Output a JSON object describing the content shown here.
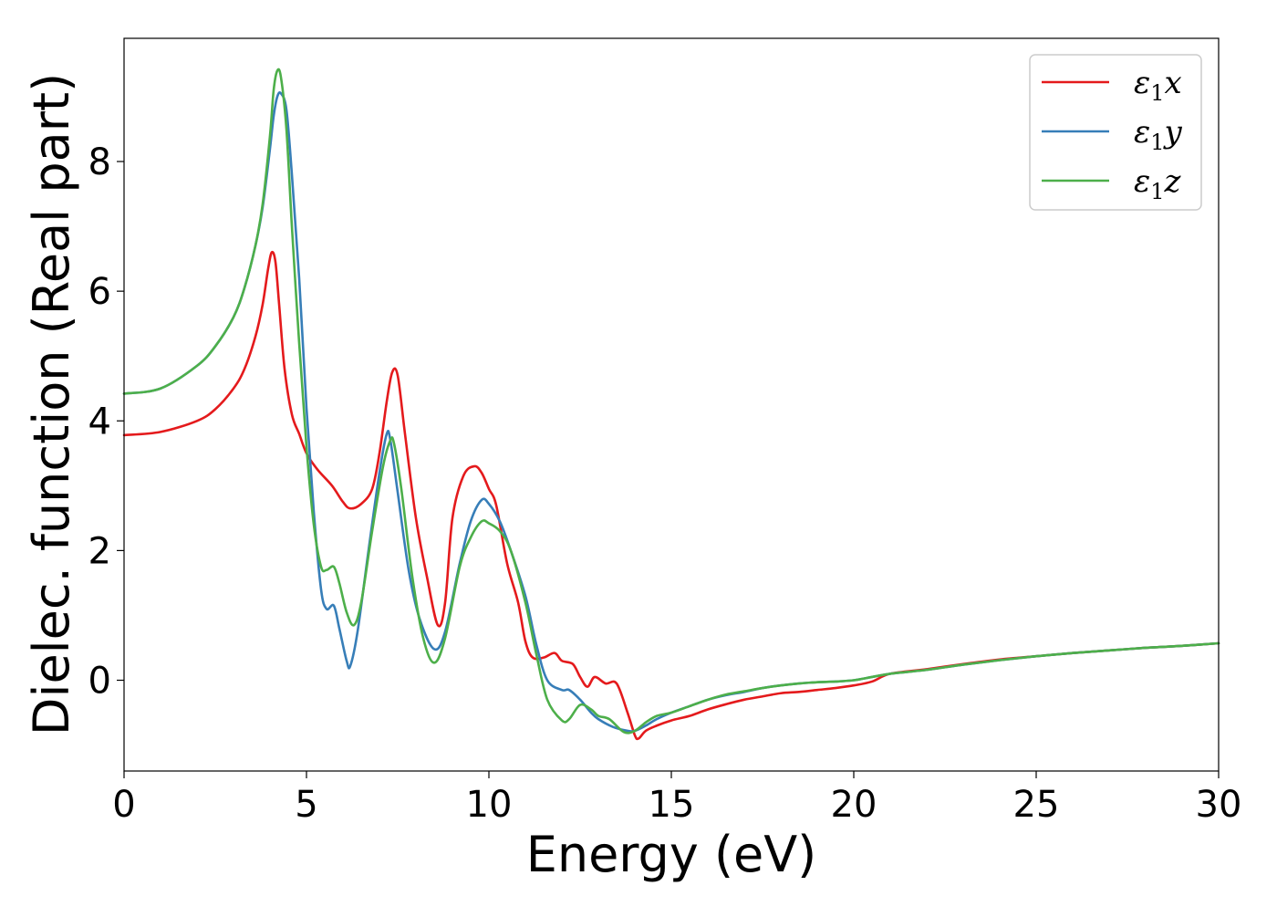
{
  "chart_data": {
    "type": "line",
    "xlabel": "Energy (eV)",
    "ylabel": "Dielec. function (Real part)",
    "xlim": [
      0,
      30
    ],
    "ylim": [
      -1.4,
      9.9
    ],
    "xticks": [
      0,
      5,
      10,
      15,
      20,
      25,
      30
    ],
    "yticks": [
      0,
      2,
      4,
      6,
      8
    ],
    "grid": false,
    "legend_position": "top-right",
    "series": [
      {
        "name": "ε1x",
        "label_base": "ε",
        "label_sub": "1",
        "label_var": "x",
        "color": "#e41a1c",
        "x": [
          0,
          1,
          2,
          2.5,
          3,
          3.3,
          3.6,
          3.8,
          3.95,
          4.05,
          4.15,
          4.25,
          4.4,
          4.6,
          4.8,
          5.0,
          5.3,
          5.7,
          6.0,
          6.2,
          6.5,
          6.8,
          7.0,
          7.2,
          7.35,
          7.5,
          7.7,
          8.0,
          8.3,
          8.6,
          8.8,
          9.0,
          9.3,
          9.6,
          9.8,
          10.0,
          10.2,
          10.5,
          10.8,
          11.0,
          11.2,
          11.5,
          11.8,
          12.0,
          12.3,
          12.5,
          12.7,
          12.9,
          13.2,
          13.5,
          13.8,
          14.0,
          14.1,
          14.3,
          14.6,
          15.0,
          15.5,
          16.0,
          16.5,
          17.0,
          17.5,
          18.0,
          18.5,
          19.0,
          19.5,
          20.0,
          20.5,
          21.0,
          22.0,
          23.0,
          24.0,
          25.0,
          26.0,
          27.0,
          28.0,
          29.0,
          30.0
        ],
        "y": [
          3.78,
          3.83,
          4.0,
          4.18,
          4.5,
          4.8,
          5.3,
          5.8,
          6.35,
          6.6,
          6.45,
          5.8,
          4.8,
          4.1,
          3.8,
          3.5,
          3.25,
          3.0,
          2.75,
          2.65,
          2.72,
          2.95,
          3.5,
          4.3,
          4.75,
          4.7,
          3.8,
          2.5,
          1.6,
          0.85,
          1.2,
          2.5,
          3.15,
          3.3,
          3.2,
          2.95,
          2.7,
          1.8,
          1.2,
          0.6,
          0.35,
          0.35,
          0.42,
          0.3,
          0.25,
          0.05,
          -0.1,
          0.05,
          -0.05,
          -0.05,
          -0.5,
          -0.85,
          -0.9,
          -0.78,
          -0.7,
          -0.62,
          -0.55,
          -0.45,
          -0.37,
          -0.3,
          -0.25,
          -0.2,
          -0.18,
          -0.15,
          -0.12,
          -0.08,
          -0.02,
          0.1,
          0.17,
          0.25,
          0.32,
          0.37,
          0.42,
          0.46,
          0.5,
          0.53,
          0.57
        ]
      },
      {
        "name": "ε1y",
        "label_base": "ε",
        "label_sub": "1",
        "label_var": "y",
        "color": "#377eb8",
        "x": [
          0,
          1,
          2,
          2.5,
          3,
          3.3,
          3.6,
          3.8,
          4.0,
          4.1,
          4.2,
          4.3,
          4.45,
          4.6,
          4.8,
          5.0,
          5.2,
          5.4,
          5.55,
          5.75,
          5.9,
          6.1,
          6.2,
          6.4,
          6.7,
          7.0,
          7.2,
          7.3,
          7.5,
          7.8,
          8.1,
          8.5,
          8.8,
          9.2,
          9.5,
          9.8,
          10.0,
          10.3,
          10.6,
          11.0,
          11.3,
          11.6,
          12.0,
          12.2,
          12.5,
          12.8,
          13.0,
          13.4,
          13.8,
          14.0,
          14.3,
          14.6,
          15.0,
          15.5,
          16.0,
          16.5,
          17.0,
          17.5,
          18.0,
          18.5,
          19.0,
          19.5,
          20.0,
          20.5,
          21.0,
          22.0,
          23.0,
          24.0,
          25.0,
          26.0,
          27.0,
          28.0,
          29.0,
          30.0
        ],
        "y": [
          4.42,
          4.5,
          4.85,
          5.15,
          5.6,
          6.05,
          6.7,
          7.3,
          8.2,
          8.7,
          9.0,
          9.05,
          8.8,
          7.8,
          6.2,
          4.2,
          2.6,
          1.4,
          1.1,
          1.15,
          0.8,
          0.3,
          0.22,
          0.75,
          2.0,
          3.2,
          3.8,
          3.7,
          2.9,
          1.7,
          0.95,
          0.48,
          0.75,
          1.8,
          2.45,
          2.78,
          2.72,
          2.45,
          2.0,
          1.3,
          0.55,
          0.0,
          -0.15,
          -0.15,
          -0.3,
          -0.5,
          -0.6,
          -0.72,
          -0.78,
          -0.78,
          -0.7,
          -0.6,
          -0.5,
          -0.4,
          -0.3,
          -0.23,
          -0.18,
          -0.12,
          -0.08,
          -0.05,
          -0.03,
          -0.02,
          0.0,
          0.05,
          0.1,
          0.16,
          0.24,
          0.31,
          0.37,
          0.42,
          0.46,
          0.5,
          0.53,
          0.57
        ]
      },
      {
        "name": "ε1z",
        "label_base": "ε",
        "label_sub": "1",
        "label_var": "z",
        "color": "#4daf4a",
        "x": [
          0,
          1,
          2,
          2.5,
          3,
          3.3,
          3.6,
          3.8,
          4.0,
          4.1,
          4.2,
          4.3,
          4.45,
          4.6,
          4.8,
          5.0,
          5.2,
          5.4,
          5.55,
          5.75,
          5.9,
          6.1,
          6.3,
          6.5,
          6.8,
          7.1,
          7.3,
          7.4,
          7.6,
          7.9,
          8.2,
          8.5,
          8.8,
          9.2,
          9.5,
          9.8,
          10.0,
          10.3,
          10.6,
          11.0,
          11.3,
          11.6,
          12.0,
          12.2,
          12.5,
          12.8,
          13.0,
          13.3,
          13.7,
          14.0,
          14.3,
          14.6,
          15.0,
          15.5,
          16.0,
          16.5,
          17.0,
          17.5,
          18.0,
          18.5,
          19.0,
          19.5,
          20.0,
          20.5,
          21.0,
          22.0,
          23.0,
          24.0,
          25.0,
          26.0,
          27.0,
          28.0,
          29.0,
          30.0
        ],
        "y": [
          4.42,
          4.5,
          4.85,
          5.15,
          5.6,
          6.05,
          6.7,
          7.35,
          8.4,
          9.1,
          9.4,
          9.3,
          8.5,
          7.0,
          5.2,
          3.6,
          2.4,
          1.75,
          1.7,
          1.75,
          1.5,
          1.05,
          0.85,
          1.2,
          2.3,
          3.3,
          3.7,
          3.65,
          2.95,
          1.6,
          0.65,
          0.27,
          0.65,
          1.75,
          2.2,
          2.45,
          2.42,
          2.3,
          2.0,
          1.2,
          0.4,
          -0.3,
          -0.62,
          -0.6,
          -0.38,
          -0.45,
          -0.55,
          -0.6,
          -0.8,
          -0.78,
          -0.65,
          -0.55,
          -0.5,
          -0.4,
          -0.3,
          -0.22,
          -0.17,
          -0.12,
          -0.08,
          -0.05,
          -0.03,
          -0.02,
          0.0,
          0.05,
          0.1,
          0.16,
          0.24,
          0.31,
          0.37,
          0.42,
          0.46,
          0.5,
          0.53,
          0.57
        ]
      }
    ]
  }
}
